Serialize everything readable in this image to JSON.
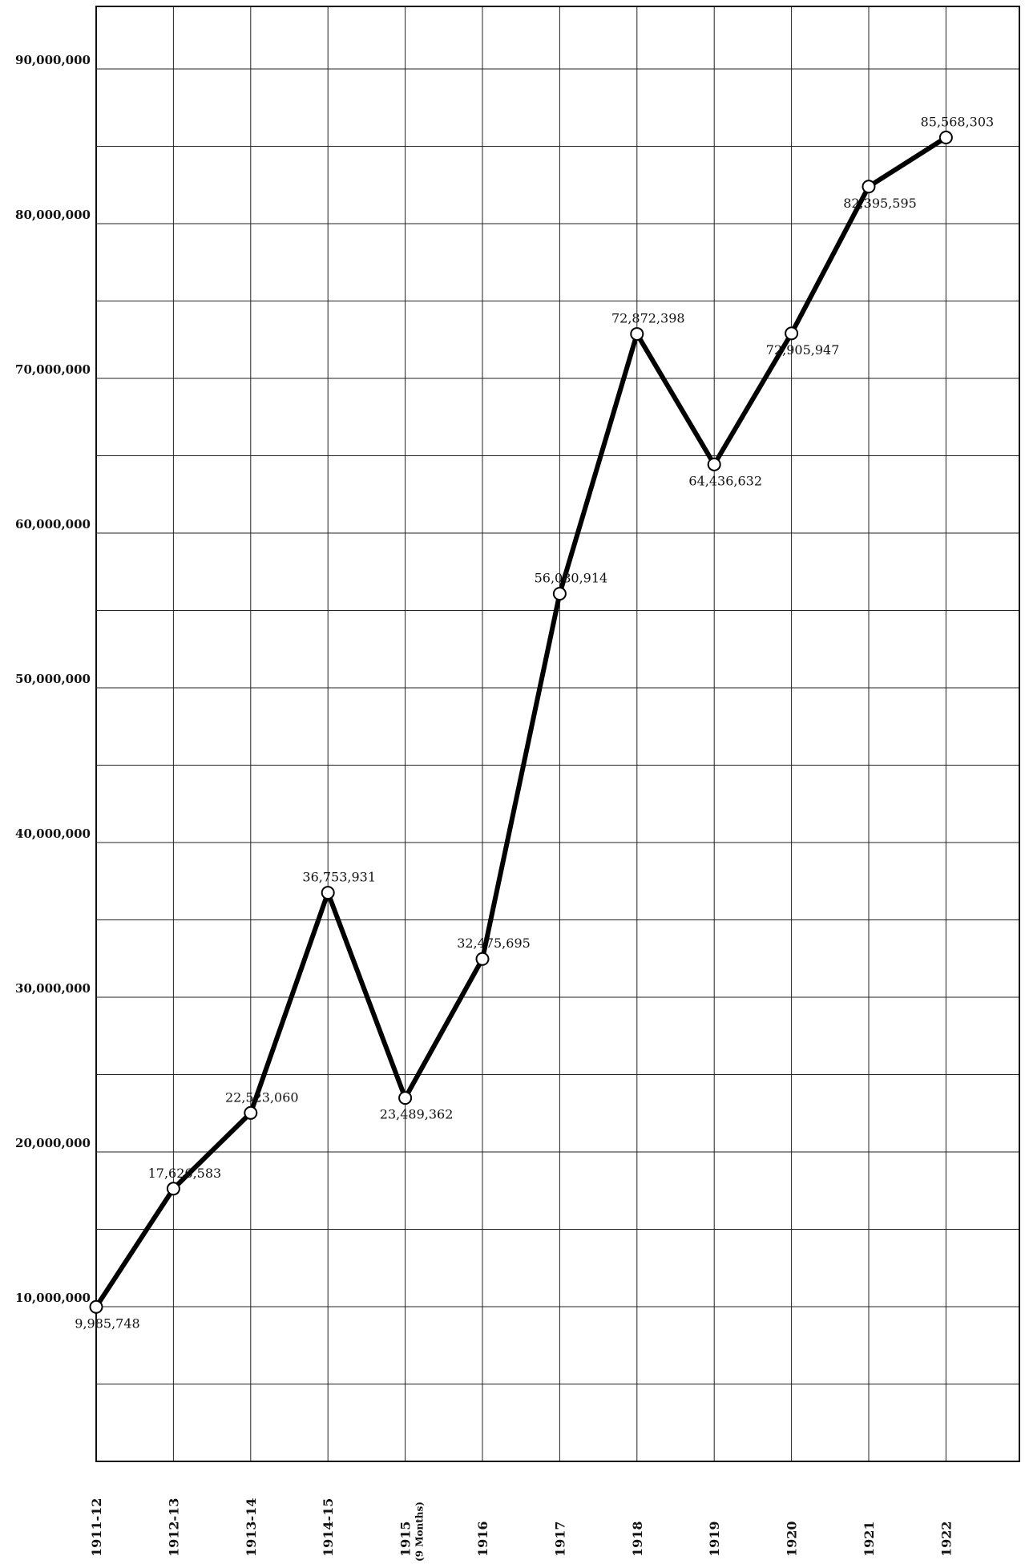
{
  "chart_data": {
    "type": "line",
    "title": "",
    "xlabel": "",
    "ylabel": "",
    "categories": [
      "1911-12",
      "1912-13",
      "1913-14",
      "1914-15",
      "1915",
      "1916",
      "1917",
      "1918",
      "1919",
      "1920",
      "1921",
      "1922"
    ],
    "category_sublabels": [
      "",
      "",
      "",
      "",
      "(9 Months)",
      "",
      "",
      "",
      "",
      "",
      "",
      ""
    ],
    "series": [
      {
        "values": [
          9985748,
          17626583,
          22523060,
          36753931,
          23489362,
          32475695,
          56080914,
          72872398,
          64436632,
          72905947,
          82395595,
          85568303
        ],
        "labels": [
          "9,985,748",
          "17,626,583",
          "22,523,060",
          "36,753,931",
          "23,489,362",
          "32,475,695",
          "56,080,914",
          "72,872,398",
          "64,436,632",
          "72,905,947",
          "82,395,595",
          "85,568,303"
        ]
      }
    ],
    "ylim": [
      0,
      95000000
    ],
    "yticks": [
      10000000,
      20000000,
      30000000,
      40000000,
      50000000,
      60000000,
      70000000,
      80000000,
      90000000
    ],
    "ytick_labels": [
      "10,000,000",
      "20,000,000",
      "30,000,000",
      "40,000,000",
      "50,000,000",
      "60,000,000",
      "70,000,000",
      "80,000,000",
      "90,000,000"
    ],
    "grid": true,
    "legend": "none"
  }
}
